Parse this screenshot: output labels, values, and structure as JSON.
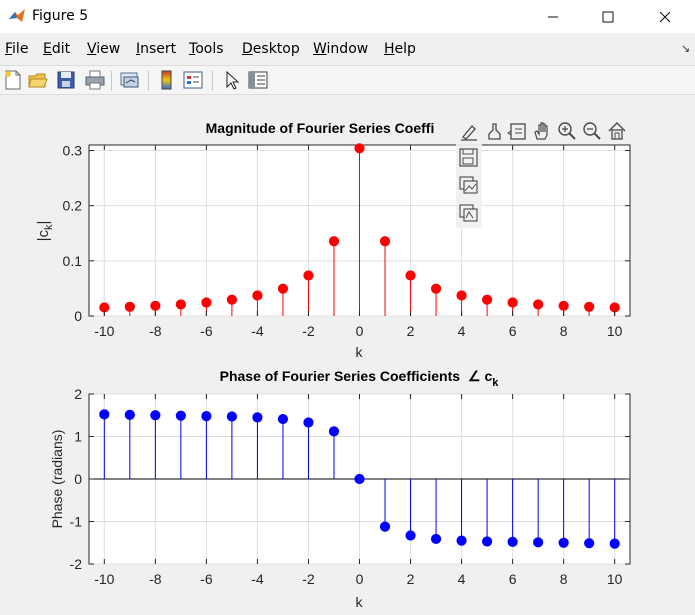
{
  "window": {
    "title": "Figure 5"
  },
  "menu": {
    "items": [
      {
        "label": "File",
        "u": "F",
        "rest": "ile"
      },
      {
        "label": "Edit",
        "u": "E",
        "rest": "dit"
      },
      {
        "label": "View",
        "u": "V",
        "rest": "iew"
      },
      {
        "label": "Insert",
        "u": "I",
        "rest": "nsert"
      },
      {
        "label": "Tools",
        "u": "T",
        "rest": "ools"
      },
      {
        "label": "Desktop",
        "u": "D",
        "rest": "esktop"
      },
      {
        "label": "Window",
        "u": "W",
        "rest": "indow"
      },
      {
        "label": "Help",
        "u": "H",
        "rest": "elp"
      }
    ]
  },
  "toolbar": {
    "icons": [
      "new-figure-icon",
      "open-file-icon",
      "save-icon",
      "print-icon",
      "link-plot-icon",
      "colorbar-icon",
      "legend-icon",
      "edit-plot-icon",
      "property-inspector-icon"
    ]
  },
  "axes_toolbar": {
    "icons": [
      "brush-edit-icon",
      "data-brush-icon",
      "data-tips-icon",
      "pan-icon",
      "zoom-in-icon",
      "zoom-out-icon",
      "home-icon",
      "save-axes-icon",
      "copy-image-icon",
      "copy-vector-icon"
    ]
  },
  "chart_data": [
    {
      "type": "stem",
      "title": "Magnitude of Fourier Series Coeffi",
      "xlabel": "k",
      "ylabel": "|c",
      "ylabel_sub": "k",
      "ylabel_end": "|",
      "color": "#ff0000",
      "x": [
        -10,
        -9,
        -8,
        -7,
        -6,
        -5,
        -4,
        -3,
        -2,
        -1,
        0,
        1,
        2,
        3,
        4,
        5,
        6,
        7,
        8,
        9,
        10
      ],
      "values": [
        0.0155,
        0.0167,
        0.0185,
        0.021,
        0.0245,
        0.0296,
        0.0372,
        0.0495,
        0.0735,
        0.1355,
        0.304,
        0.1355,
        0.0735,
        0.0495,
        0.0372,
        0.0296,
        0.0245,
        0.021,
        0.0185,
        0.0167,
        0.0155
      ],
      "xlim": [
        -10.6,
        10.6
      ],
      "ylim": [
        0,
        0.31
      ],
      "xticks": [
        -10,
        -8,
        -6,
        -4,
        -2,
        0,
        2,
        4,
        6,
        8,
        10
      ],
      "xtick_labels": [
        "-10",
        "-8",
        "-6",
        "-4",
        "-2",
        "0",
        "2",
        "4",
        "6",
        "8",
        "10"
      ],
      "yticks": [
        0,
        0.1,
        0.2,
        0.3
      ],
      "ytick_labels": [
        "0",
        "0.1",
        "0.2",
        "0.3"
      ],
      "grid": true
    },
    {
      "type": "stem",
      "title": "Phase of Fourier Series Coefficients",
      "title_symbol": "∠ c",
      "title_sub": "k",
      "xlabel": "k",
      "ylabel": "Phase (radians)",
      "color": "#0000ff",
      "x": [
        -10,
        -9,
        -8,
        -7,
        -6,
        -5,
        -4,
        -3,
        -2,
        -1,
        0,
        1,
        2,
        3,
        4,
        5,
        6,
        7,
        8,
        9,
        10
      ],
      "values": [
        1.52,
        1.51,
        1.5,
        1.49,
        1.48,
        1.47,
        1.45,
        1.41,
        1.33,
        1.12,
        0,
        -1.12,
        -1.33,
        -1.41,
        -1.45,
        -1.47,
        -1.48,
        -1.49,
        -1.5,
        -1.51,
        -1.52
      ],
      "xlim": [
        -10.6,
        10.6
      ],
      "ylim": [
        -2,
        2
      ],
      "xticks": [
        -10,
        -8,
        -6,
        -4,
        -2,
        0,
        2,
        4,
        6,
        8,
        10
      ],
      "xtick_labels": [
        "-10",
        "-8",
        "-6",
        "-4",
        "-2",
        "0",
        "2",
        "4",
        "6",
        "8",
        "10"
      ],
      "yticks": [
        -2,
        -1,
        0,
        1,
        2
      ],
      "ytick_labels": [
        "-2",
        "-1",
        "0",
        "1",
        "2"
      ],
      "grid": true
    }
  ]
}
